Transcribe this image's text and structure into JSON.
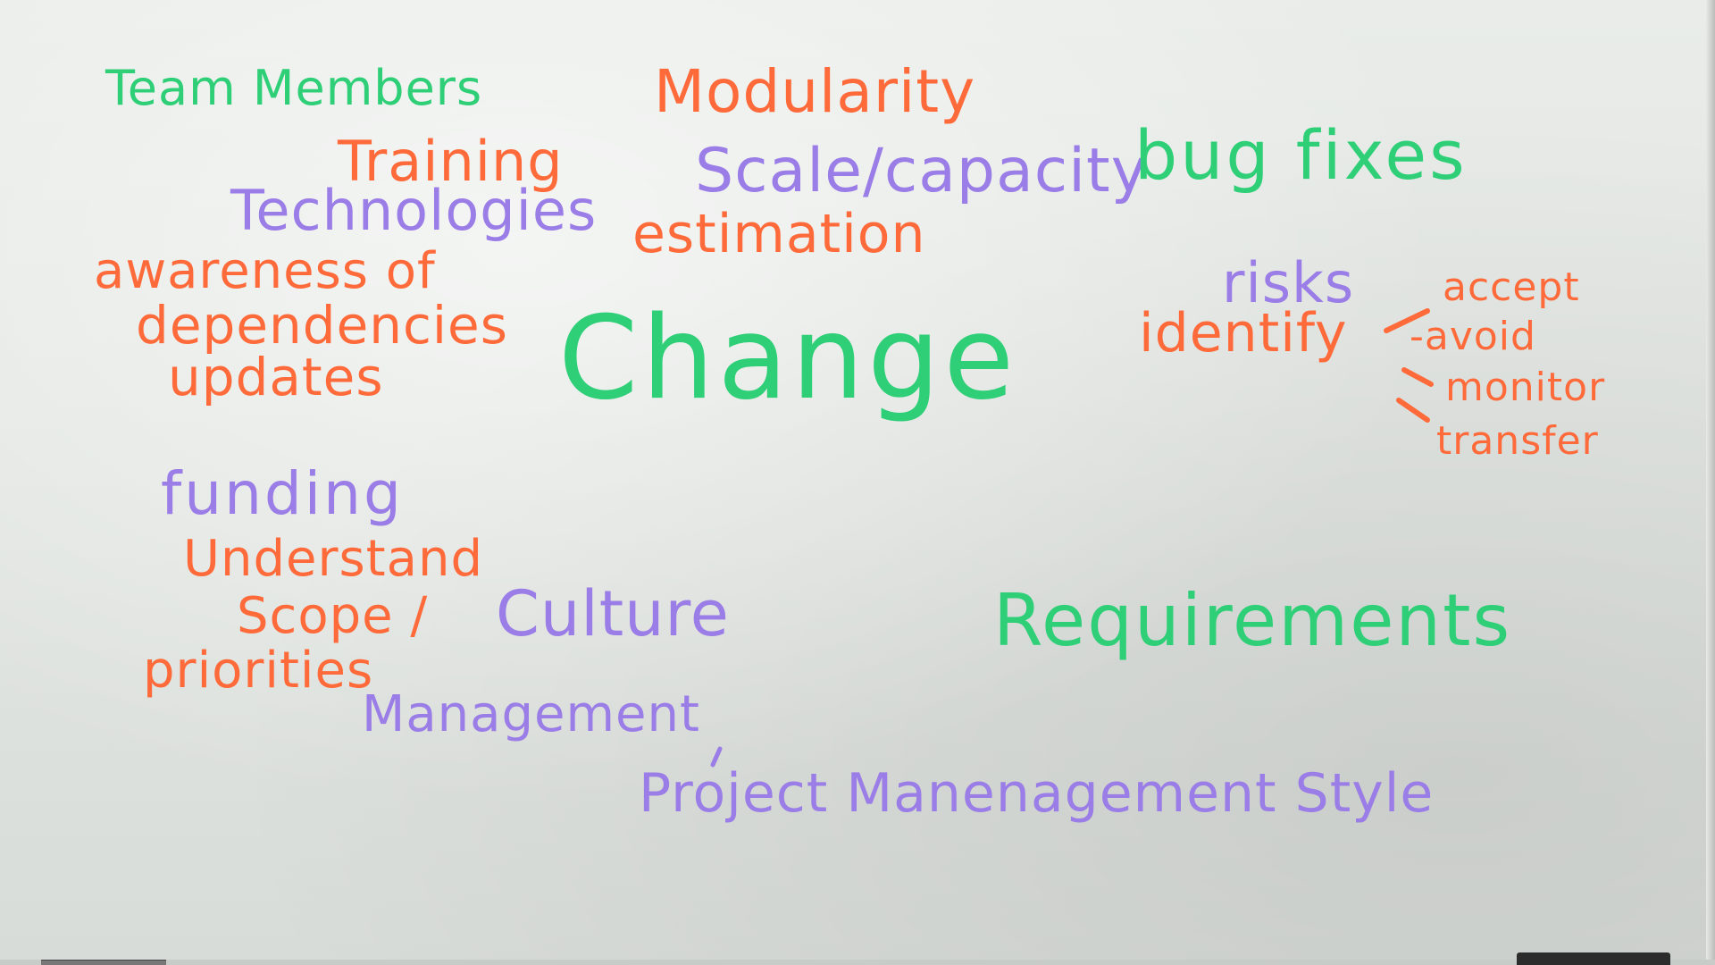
{
  "colors": {
    "orange": "#ff6a3a",
    "green": "#2fcf78",
    "purple": "#9a7de6",
    "board": "#e3e6e3"
  },
  "words": {
    "team_members": "Team Members",
    "training": "Training",
    "technologies": "Technologies",
    "awareness_of": "awareness of",
    "dependencies": "dependencies",
    "updates": "updates",
    "modularity": "Modularity",
    "scale_capacity": "Scale/capacity",
    "estimation": "estimation",
    "change": "Change",
    "bug_fixes": "bug fixes",
    "risks": "risks",
    "identify": "identify",
    "accept": "accept",
    "avoid": "-avoid",
    "monitor": "monitor",
    "transfer": "transfer",
    "funding": "funding",
    "understand": "Understand",
    "scope": "Scope /",
    "priorities": "priorities",
    "culture": "Culture",
    "management": "Management",
    "requirements": "Requirements",
    "project_management_style": "Project Manenagement Style"
  }
}
